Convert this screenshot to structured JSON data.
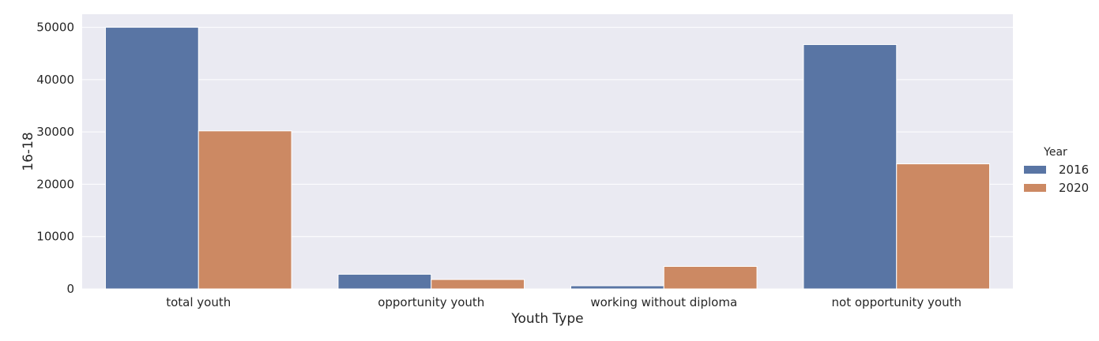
{
  "chart_data": {
    "type": "bar",
    "categories": [
      "total youth",
      "opportunity youth",
      "working without diploma",
      "not opportunity youth"
    ],
    "series": [
      {
        "name": "2016",
        "values": [
          50000,
          2800,
          600,
          46700
        ],
        "color": "#5975a4"
      },
      {
        "name": "2020",
        "values": [
          30200,
          1800,
          4300,
          23900
        ],
        "color": "#cc8963"
      }
    ],
    "xlabel": "Youth Type",
    "ylabel": "16-18",
    "ylim": [
      0,
      52500
    ],
    "yticks": [
      0,
      10000,
      20000,
      30000,
      40000,
      50000
    ],
    "legend_title": "Year",
    "legend_position": "right",
    "grid": true,
    "background_color": "#eaeaf2"
  }
}
